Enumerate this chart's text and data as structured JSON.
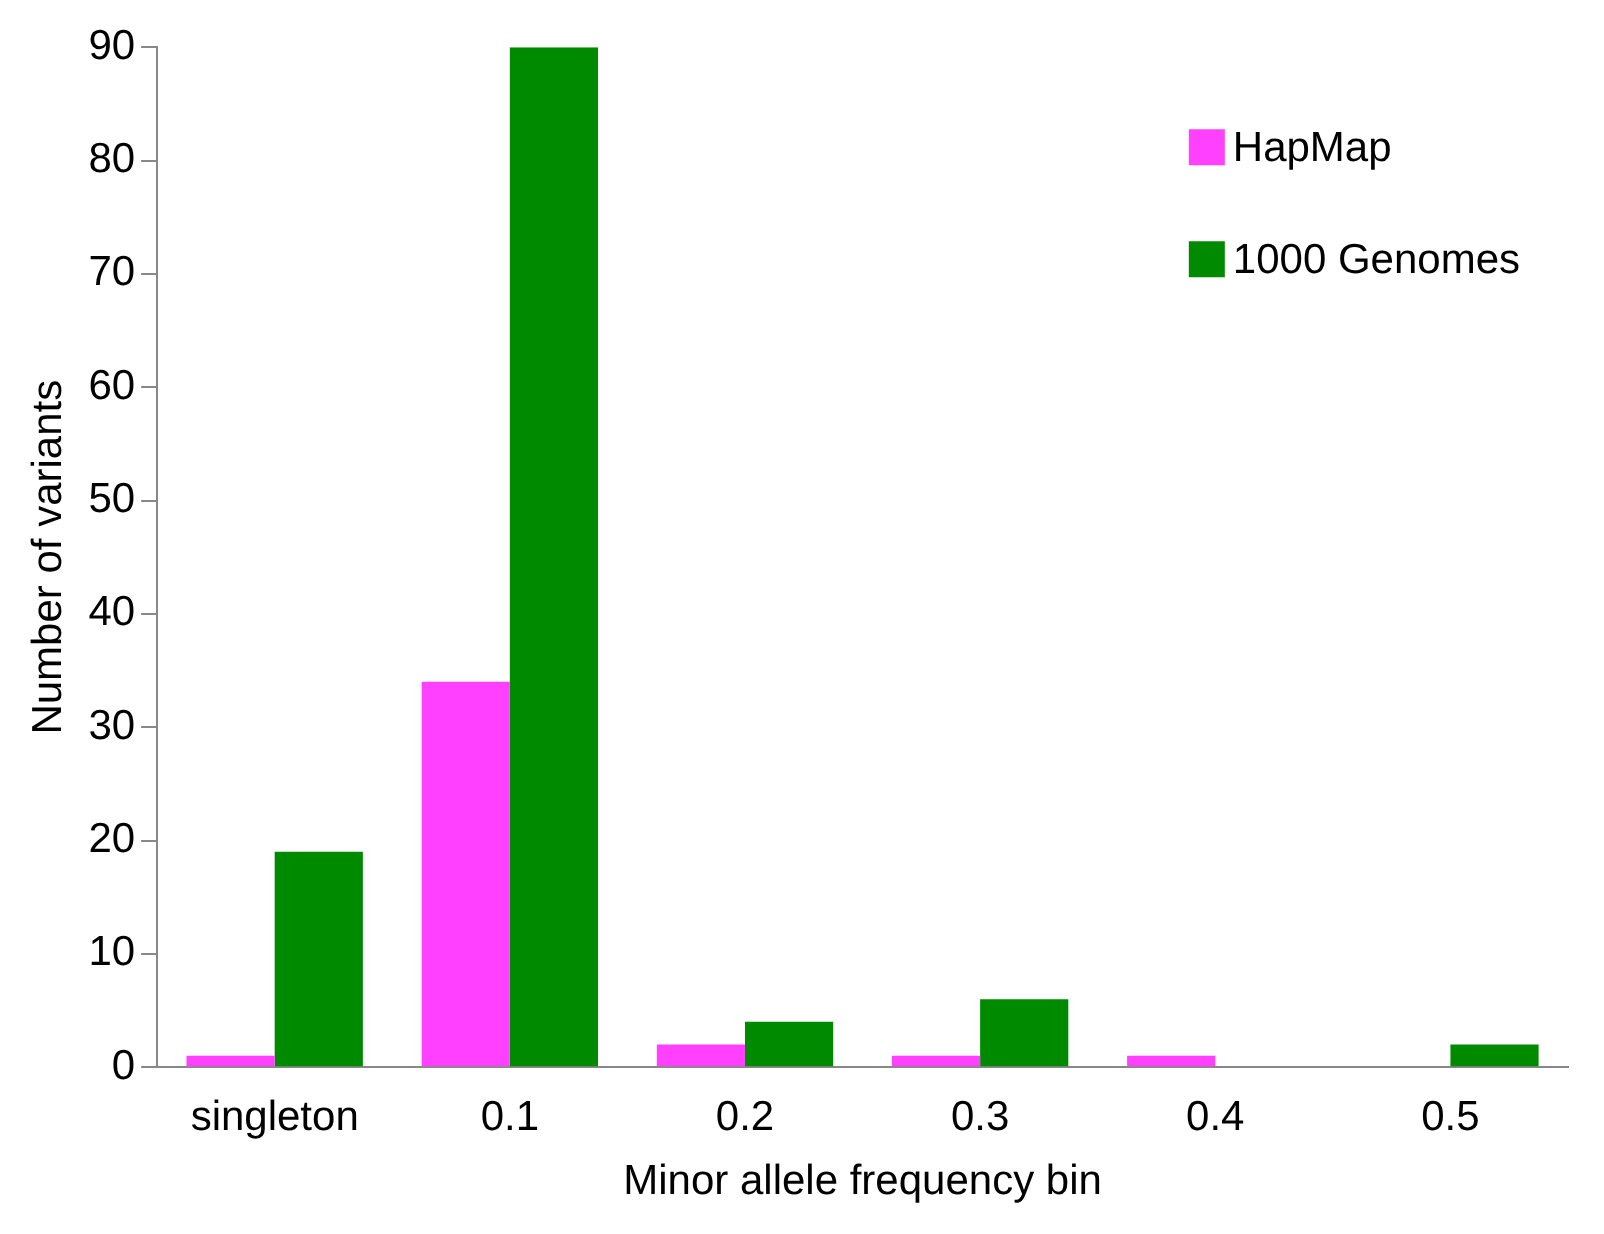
{
  "chart_data": {
    "type": "bar",
    "xlabel": "Minor allele frequency bin",
    "ylabel": "Number of variants",
    "categories": [
      "singleton",
      "0.1",
      "0.2",
      "0.3",
      "0.4",
      "0.5"
    ],
    "series": [
      {
        "name": "HapMap",
        "color": "#ff40ff",
        "values": [
          1,
          34,
          2,
          1,
          1,
          0
        ]
      },
      {
        "name": "1000 Genomes",
        "color": "#008a00",
        "values": [
          19,
          90,
          4,
          6,
          0,
          2
        ]
      }
    ],
    "ylim": [
      0,
      90
    ],
    "yticks": [
      0,
      10,
      20,
      30,
      40,
      50,
      60,
      70,
      80,
      90
    ],
    "grid": false,
    "legend": "top right"
  }
}
